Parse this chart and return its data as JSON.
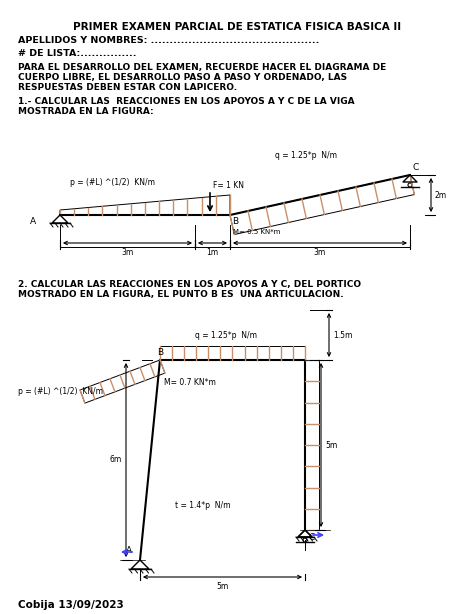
{
  "title": "PRIMER EXAMEN PARCIAL DE ESTATICA FISICA BASICA II",
  "line1": "APELLIDOS Y NOMBRES: .............................................",
  "line2": "# DE LISTA:...............",
  "para1_l1": "PARA EL DESARROLLO DEL EXAMEN, RECUERDE HACER EL DIAGRAMA DE",
  "para1_l2": "CUERPO LIBRE, EL DESARROLLO PASO A PASO Y ORDENADO, LAS",
  "para1_l3": "RESPUESTAS DEBEN ESTAR CON LAPICERO.",
  "prob1_l1": "1.- CALCULAR LAS  REACCIONES EN LOS APOYOS A Y C DE LA VIGA",
  "prob1_l2": "MOSTRADA EN LA FIGURA:",
  "prob2_l1": "2. CALCULAR LAS REACCIONES EN LOS APOYOS A Y C, DEL PORTICO",
  "prob2_l2": "MOSTRADO EN LA FIGURA, EL PUNTO B ES  UNA ARTICULACION.",
  "footer": "Cobija 13/09/2023",
  "hatch_color": "#c8906a",
  "bg_color": "#ffffff"
}
